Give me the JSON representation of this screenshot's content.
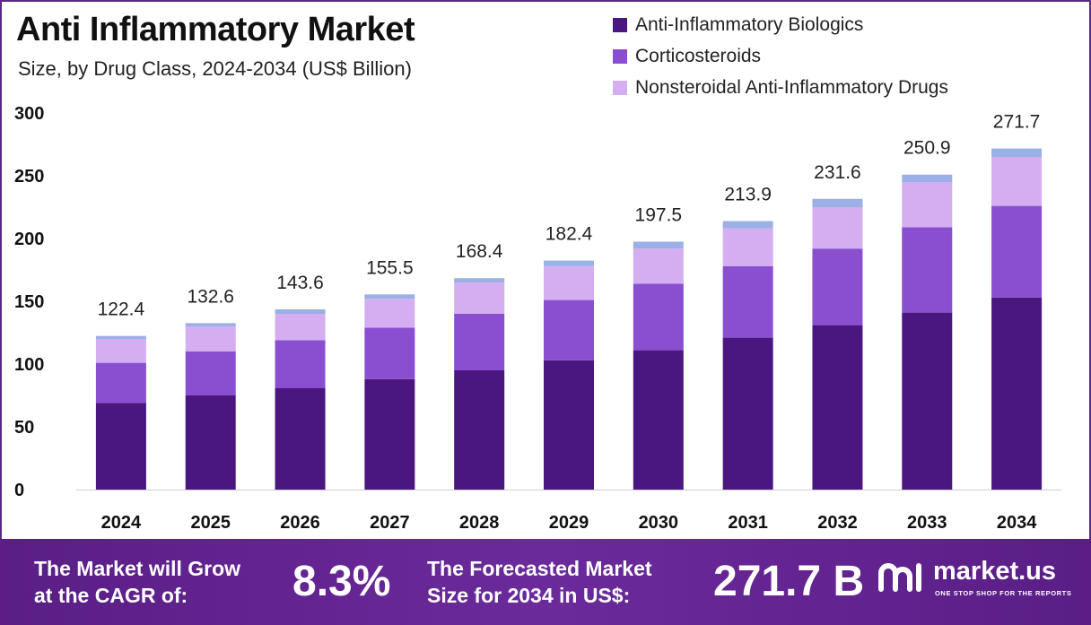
{
  "header": {
    "title": "Anti Inflammatory Market",
    "subtitle": "Size, by Drug Class, 2024-2034 (US$ Billion)"
  },
  "legend": [
    {
      "label": "Anti-Inflammatory Biologics",
      "color": "#4a1680"
    },
    {
      "label": "Corticosteroids",
      "color": "#8a4fd0"
    },
    {
      "label": "Nonsteroidal Anti-Inflammatory Drugs",
      "color": "#d4aef0"
    }
  ],
  "chart_data": {
    "type": "bar",
    "stacked": true,
    "categories": [
      "2024",
      "2025",
      "2026",
      "2027",
      "2028",
      "2029",
      "2030",
      "2031",
      "2032",
      "2033",
      "2034"
    ],
    "series": [
      {
        "name": "Anti-Inflammatory Biologics",
        "color": "#4a1680",
        "values": [
          69,
          75,
          81,
          88,
          95,
          103,
          111,
          121,
          131,
          141,
          153
        ]
      },
      {
        "name": "Corticosteroids",
        "color": "#8a4fd0",
        "values": [
          32,
          35,
          38,
          41,
          45,
          48,
          53,
          57,
          61,
          68,
          73
        ]
      },
      {
        "name": "Nonsteroidal Anti-Inflammatory Drugs",
        "color": "#d4aef0",
        "values": [
          19,
          20,
          21,
          23,
          25,
          27,
          28,
          30,
          33,
          36,
          39
        ]
      },
      {
        "color": "#9bb0e6",
        "values": [
          2.4,
          2.6,
          3.6,
          3.5,
          3.4,
          4.4,
          5.5,
          5.9,
          6.6,
          5.9,
          6.7
        ]
      }
    ],
    "totals": [
      "122.4",
      "132.6",
      "143.6",
      "155.5",
      "168.4",
      "182.4",
      "197.5",
      "213.9",
      "231.6",
      "250.9",
      "271.7"
    ],
    "y_ticks": [
      "0",
      "50",
      "100",
      "150",
      "200",
      "250",
      "300"
    ],
    "ylim": [
      0,
      300
    ],
    "grid": false,
    "legend_position": "top-right"
  },
  "footer": {
    "cagr_label_line1": "The Market will Grow",
    "cagr_label_line2": "at the CAGR of:",
    "cagr_value": "8.3%",
    "forecast_label_line1": "The Forecasted Market",
    "forecast_label_line2": "Size for 2034 in US$:",
    "forecast_value": "271.7 B",
    "brand_name": "market.us",
    "brand_tagline": "ONE STOP SHOP FOR THE REPORTS"
  }
}
